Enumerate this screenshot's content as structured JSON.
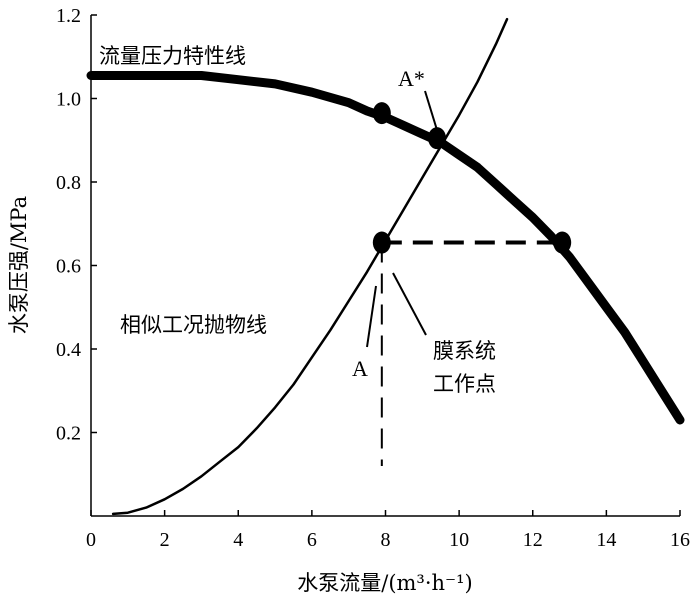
{
  "chart_data": {
    "type": "line",
    "xlabel": "水泵流量/(m³·h⁻¹)",
    "ylabel": "水泵压强/MPa",
    "xlim": [
      0,
      16
    ],
    "ylim": [
      0,
      1.2
    ],
    "xticks": [
      "0",
      "2",
      "4",
      "6",
      "8",
      "10",
      "12",
      "14",
      "16"
    ],
    "yticks": [
      "0.2",
      "0.4",
      "0.6",
      "0.8",
      "1.0",
      "1.2"
    ],
    "grid": false,
    "series": [
      {
        "name": "流量压力特性线",
        "color": "#000000",
        "x": [
          0,
          1,
          2,
          3,
          4,
          5,
          6,
          7,
          7.5,
          8,
          8.5,
          9,
          9.5,
          10,
          10.5,
          11,
          11.5,
          12,
          12.5,
          13,
          13.5,
          14,
          14.5,
          15,
          15.5,
          16
        ],
        "y": [
          1.055,
          1.055,
          1.055,
          1.055,
          1.045,
          1.035,
          1.015,
          0.99,
          0.97,
          0.955,
          0.935,
          0.915,
          0.895,
          0.865,
          0.835,
          0.795,
          0.755,
          0.715,
          0.67,
          0.62,
          0.56,
          0.5,
          0.44,
          0.37,
          0.3,
          0.23
        ]
      },
      {
        "name": "相似工况抛物线",
        "color": "#000000",
        "x": [
          0.6,
          1,
          1.5,
          2,
          2.5,
          3,
          3.5,
          4,
          4.5,
          5,
          5.5,
          6,
          6.5,
          7,
          7.5,
          8,
          8.5,
          9,
          9.5,
          10,
          10.5,
          11,
          11.3
        ],
        "y": [
          0.005,
          0.008,
          0.02,
          0.04,
          0.065,
          0.095,
          0.13,
          0.165,
          0.21,
          0.26,
          0.315,
          0.38,
          0.445,
          0.515,
          0.585,
          0.66,
          0.735,
          0.81,
          0.885,
          0.96,
          1.04,
          1.13,
          1.19
        ]
      }
    ],
    "markers": [
      {
        "x": 7.9,
        "y": 0.965
      },
      {
        "x": 9.4,
        "y": 0.905
      },
      {
        "x": 7.9,
        "y": 0.655
      },
      {
        "x": 12.8,
        "y": 0.655
      }
    ],
    "annotations": {
      "curve_label_1": "流量压力特性线",
      "curve_label_2": "相似工况抛物线",
      "point_a_star": "A*",
      "point_a": "A",
      "op_point_line1": "膜系统",
      "op_point_line2": "工作点"
    }
  }
}
